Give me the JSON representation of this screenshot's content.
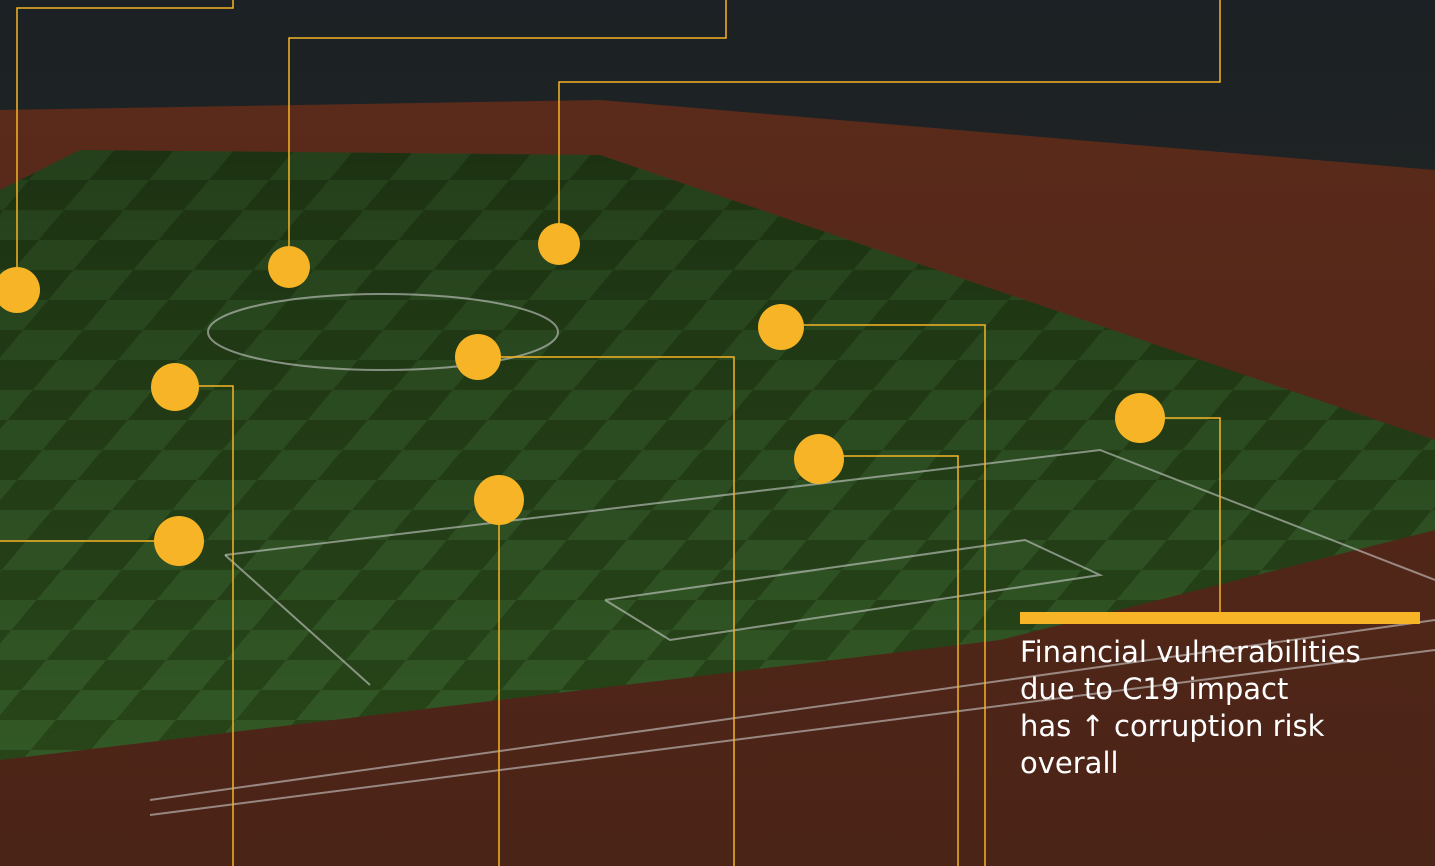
{
  "callout": {
    "lines": [
      "Financial vulnerabilities",
      "due to C19 impact",
      "has ↑ corruption risk",
      "overall"
    ]
  }
}
